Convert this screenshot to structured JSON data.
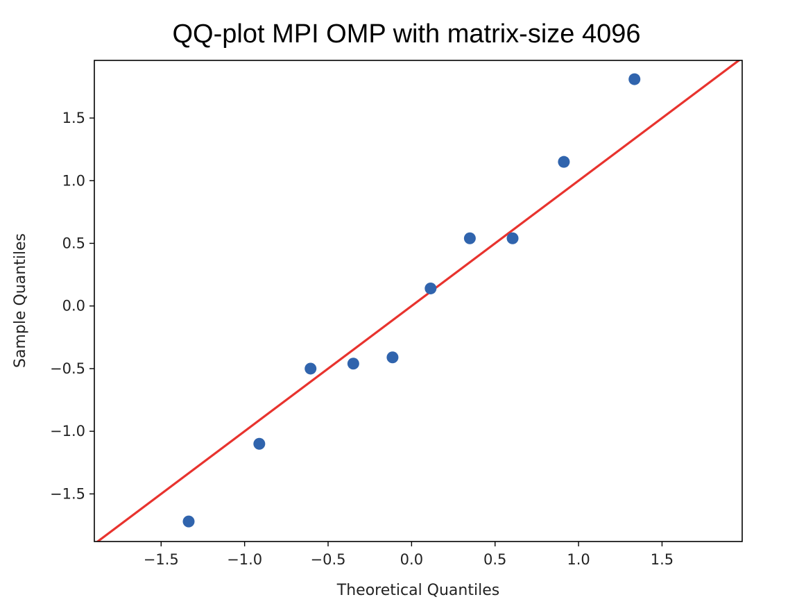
{
  "chart_data": {
    "type": "scatter",
    "title": "QQ-plot MPI OMP with matrix-size 4096",
    "xlabel": "Theoretical Quantiles",
    "ylabel": "Sample Quantiles",
    "xlim": [
      -1.9,
      1.98
    ],
    "ylim": [
      -1.88,
      1.96
    ],
    "xticks": [
      -1.5,
      -1.0,
      -0.5,
      0.0,
      0.5,
      1.0,
      1.5
    ],
    "xtick_labels": [
      "−1.5",
      "−1.0",
      "−0.5",
      "0.0",
      "0.5",
      "1.0",
      "1.5"
    ],
    "yticks": [
      -1.5,
      -1.0,
      -0.5,
      0.0,
      0.5,
      1.0,
      1.5
    ],
    "ytick_labels": [
      "−1.5",
      "−1.0",
      "−0.5",
      "0.0",
      "0.5",
      "1.0",
      "1.5"
    ],
    "grid": false,
    "points": {
      "x": [
        -1.335,
        -0.912,
        -0.605,
        -0.349,
        -0.114,
        0.114,
        0.349,
        0.605,
        0.912,
        1.335
      ],
      "y": [
        -1.72,
        -1.1,
        -0.5,
        -0.46,
        -0.41,
        0.14,
        0.54,
        0.54,
        1.15,
        1.81
      ]
    },
    "reference_line": {
      "slope": 1,
      "intercept": 0
    },
    "colors": {
      "points": "#3064ad",
      "line": "#e8332e",
      "axes": "#000000"
    }
  }
}
